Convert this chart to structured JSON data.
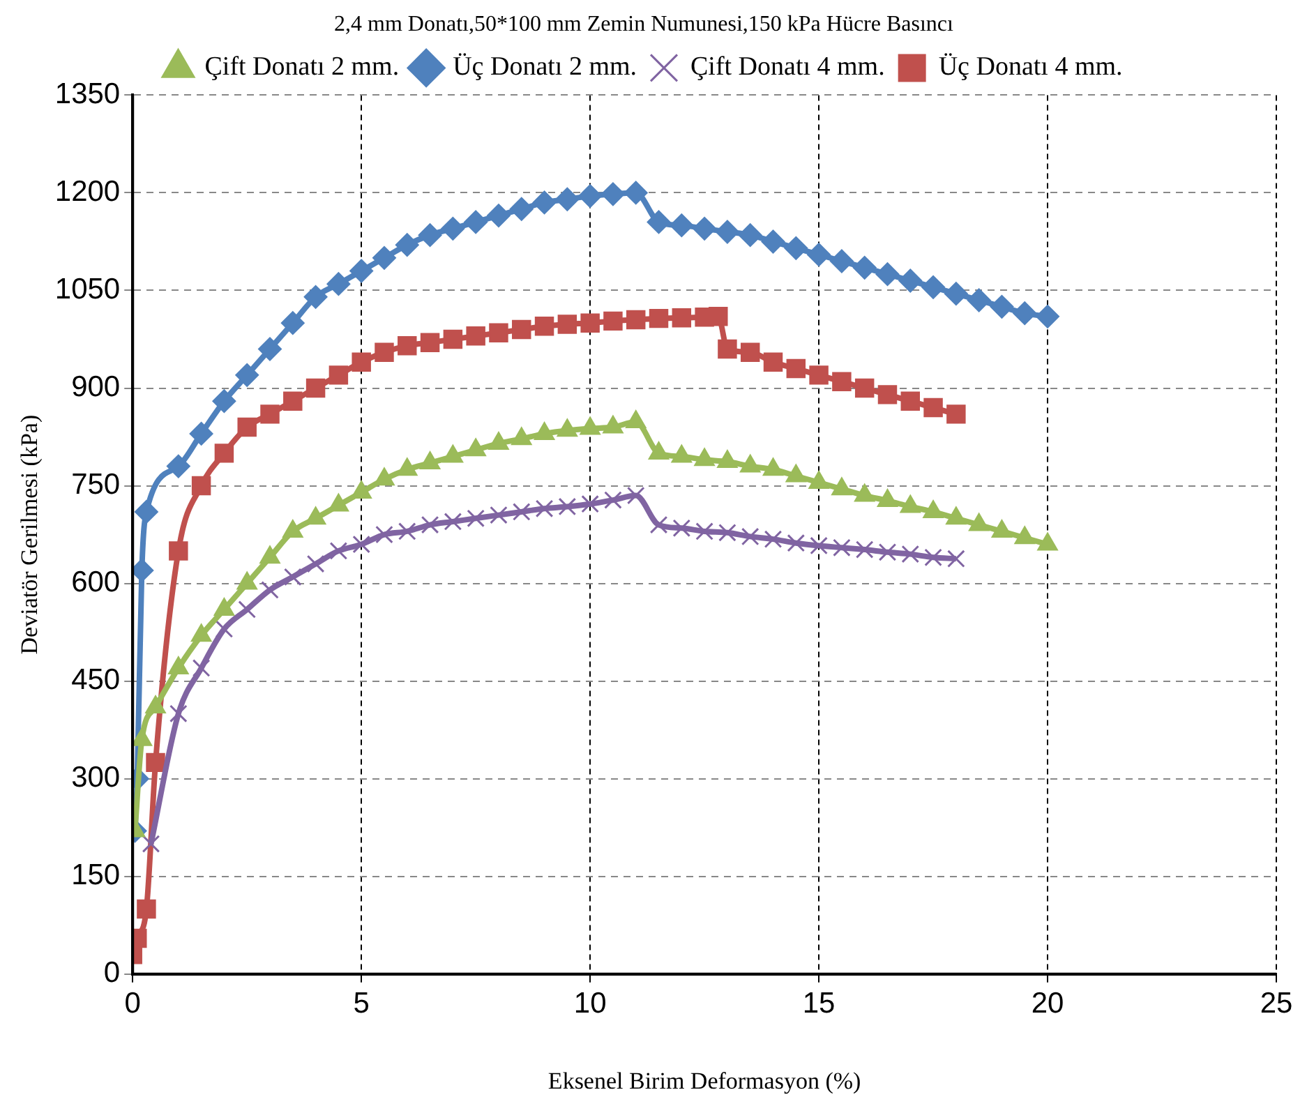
{
  "chart_data": {
    "type": "line",
    "title": "2,4 mm Donatı,50*100 mm Zemin Numunesi,150 kPa Hücre Basıncı",
    "xlabel": "Eksenel Birim Deformasyon (%)",
    "ylabel": "Deviatör Gerilmesi (kPa)",
    "xlim": [
      0,
      25
    ],
    "xticks": [
      0,
      5,
      10,
      15,
      20,
      25
    ],
    "ylim": [
      0,
      1350
    ],
    "yticks": [
      0,
      150,
      300,
      450,
      600,
      750,
      900,
      1050,
      1200,
      1350
    ],
    "grid": true,
    "legend": "top",
    "line_style": "solid",
    "series": [
      {
        "name": "Çift Donatı 2 mm.",
        "color": "#9bbb59",
        "marker": "triangle",
        "x": [
          0.05,
          0.2,
          0.5,
          1,
          1.5,
          2,
          2.5,
          3,
          3.5,
          4,
          4.5,
          5,
          5.5,
          6,
          6.5,
          7,
          7.5,
          8,
          8.5,
          9,
          9.5,
          10,
          10.5,
          11,
          11.5,
          12,
          12.5,
          13,
          13.5,
          14,
          14.5,
          15,
          15.5,
          16,
          16.5,
          17,
          17.5,
          18,
          18.5,
          19,
          19.5,
          20
        ],
        "values": [
          220,
          360,
          410,
          470,
          520,
          560,
          600,
          640,
          680,
          700,
          720,
          740,
          760,
          775,
          785,
          795,
          805,
          815,
          822,
          830,
          835,
          838,
          840,
          848,
          800,
          795,
          790,
          787,
          780,
          775,
          765,
          755,
          745,
          735,
          727,
          718,
          710,
          700,
          690,
          680,
          670,
          660
        ]
      },
      {
        "name": "Üç Donatı 2 mm.",
        "color": "#4f81bd",
        "marker": "diamond",
        "x": [
          0.05,
          0.1,
          0.2,
          0.3,
          1,
          1.5,
          2,
          2.5,
          3,
          3.5,
          4,
          4.5,
          5,
          5.5,
          6,
          6.5,
          7,
          7.5,
          8,
          8.5,
          9,
          9.5,
          10,
          10.5,
          11,
          11.5,
          12,
          12.5,
          13,
          13.5,
          14,
          14.5,
          15,
          15.5,
          16,
          16.5,
          17,
          17.5,
          18,
          18.5,
          19,
          19.5,
          20
        ],
        "values": [
          220,
          300,
          620,
          710,
          780,
          830,
          880,
          920,
          960,
          1000,
          1040,
          1060,
          1080,
          1100,
          1120,
          1135,
          1145,
          1155,
          1165,
          1175,
          1185,
          1190,
          1195,
          1198,
          1200,
          1155,
          1150,
          1145,
          1140,
          1135,
          1125,
          1115,
          1105,
          1095,
          1085,
          1075,
          1065,
          1055,
          1045,
          1035,
          1025,
          1015,
          1010
        ]
      },
      {
        "name": "Çift Donatı 4 mm.",
        "color": "#8064a2",
        "marker": "cross",
        "x": [
          0.4,
          1,
          1.5,
          2,
          2.5,
          3,
          3.5,
          4,
          4.5,
          5,
          5.5,
          6,
          6.5,
          7,
          7.5,
          8,
          8.5,
          9,
          9.5,
          10,
          10.5,
          11,
          11.5,
          12,
          12.5,
          13,
          13.5,
          14,
          14.5,
          15,
          15.5,
          16,
          16.5,
          17,
          17.5,
          18
        ],
        "values": [
          200,
          400,
          470,
          530,
          560,
          590,
          610,
          630,
          650,
          660,
          675,
          680,
          690,
          695,
          700,
          705,
          710,
          715,
          718,
          722,
          728,
          735,
          690,
          685,
          680,
          678,
          672,
          668,
          662,
          658,
          655,
          652,
          648,
          645,
          640,
          638
        ]
      },
      {
        "name": "Üç Donatı 4 mm.",
        "color": "#c0504d",
        "marker": "square",
        "x": [
          0,
          0.1,
          0.3,
          0.5,
          1,
          1.5,
          2,
          2.5,
          3,
          3.5,
          4,
          4.5,
          5,
          5.5,
          6,
          6.5,
          7,
          7.5,
          8,
          8.5,
          9,
          9.5,
          10,
          10.5,
          11,
          11.5,
          12,
          12.5,
          12.8,
          13,
          13.5,
          14,
          14.5,
          15,
          15.5,
          16,
          16.5,
          17,
          17.5,
          18
        ],
        "values": [
          30,
          55,
          100,
          325,
          650,
          750,
          800,
          840,
          860,
          880,
          900,
          920,
          940,
          955,
          965,
          970,
          975,
          980,
          985,
          990,
          995,
          998,
          1000,
          1003,
          1005,
          1007,
          1008,
          1009,
          1010,
          960,
          955,
          940,
          930,
          920,
          910,
          900,
          890,
          880,
          870,
          860
        ]
      }
    ]
  }
}
